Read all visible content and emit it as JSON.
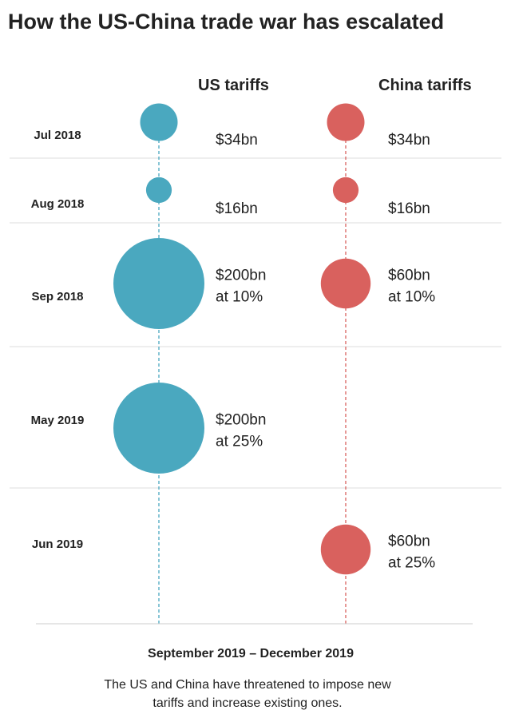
{
  "chart_data": {
    "type": "scatter",
    "title": "How the US-China trade war has escalated",
    "series": [
      {
        "name": "US tariffs",
        "color": "#4aa8bf",
        "values": [
          {
            "period": "Jul 2018",
            "amount_bn": 34,
            "label": [
              "$34bn"
            ]
          },
          {
            "period": "Aug 2018",
            "amount_bn": 16,
            "label": [
              "$16bn"
            ]
          },
          {
            "period": "Sep 2018",
            "amount_bn": 200,
            "label": [
              "$200bn",
              "at 10%"
            ]
          },
          {
            "period": "May 2019",
            "amount_bn": 200,
            "label": [
              "$200bn",
              "at 25%"
            ]
          },
          {
            "period": "Jun 2019",
            "amount_bn": null,
            "label": []
          }
        ]
      },
      {
        "name": "China tariffs",
        "color": "#d9615e",
        "values": [
          {
            "period": "Jul 2018",
            "amount_bn": 34,
            "label": [
              "$34bn"
            ]
          },
          {
            "period": "Aug 2018",
            "amount_bn": 16,
            "label": [
              "$16bn"
            ]
          },
          {
            "period": "Sep 2018",
            "amount_bn": 60,
            "label": [
              "$60bn",
              "at 10%"
            ]
          },
          {
            "period": "May 2019",
            "amount_bn": null,
            "label": []
          },
          {
            "period": "Jun 2019",
            "amount_bn": 60,
            "label": [
              "$60bn",
              "at 25%"
            ]
          }
        ]
      }
    ],
    "periods": [
      "Jul 2018",
      "Aug 2018",
      "Sep 2018",
      "May 2019",
      "Jun 2019"
    ],
    "footer_period": "September 2019 – December 2019",
    "footer_note": [
      "The US and China have threatened to impose new",
      "tariffs and increase existing ones."
    ]
  },
  "colors": {
    "divider": "#dddddd",
    "baseline": "#cccccc"
  }
}
